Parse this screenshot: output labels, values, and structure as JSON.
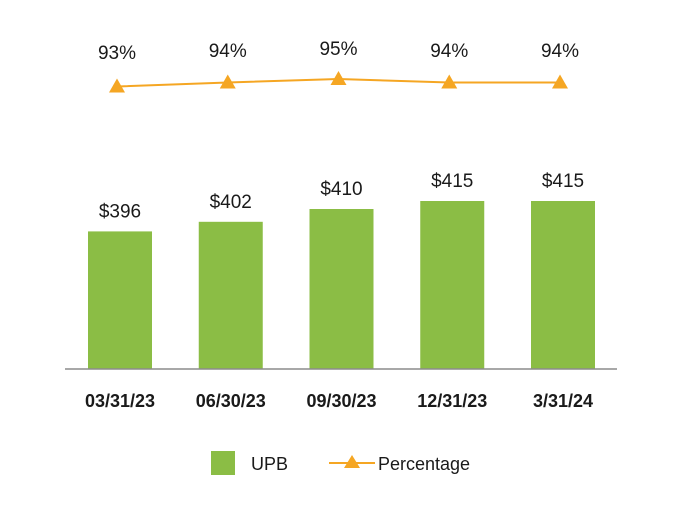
{
  "chart_data": {
    "type": "bar",
    "categories": [
      "03/31/23",
      "06/30/23",
      "09/30/23",
      "12/31/23",
      "3/31/24"
    ],
    "series": [
      {
        "name": "UPB",
        "type": "bar",
        "values": [
          396,
          402,
          410,
          415,
          415
        ],
        "labels": [
          "$396",
          "$402",
          "$410",
          "$415",
          "$415"
        ]
      },
      {
        "name": "Percentage",
        "type": "line",
        "values": [
          93,
          94,
          95,
          94,
          94
        ],
        "labels": [
          "93%",
          "94%",
          "95%",
          "94%",
          "94%"
        ]
      }
    ],
    "title": "",
    "xlabel": "",
    "ylabel": "",
    "grid": false,
    "legend": "bottom-center",
    "colors": {
      "bar": "#8bbd45",
      "line": "#f5a623",
      "axis": "#8c8c8c"
    }
  }
}
